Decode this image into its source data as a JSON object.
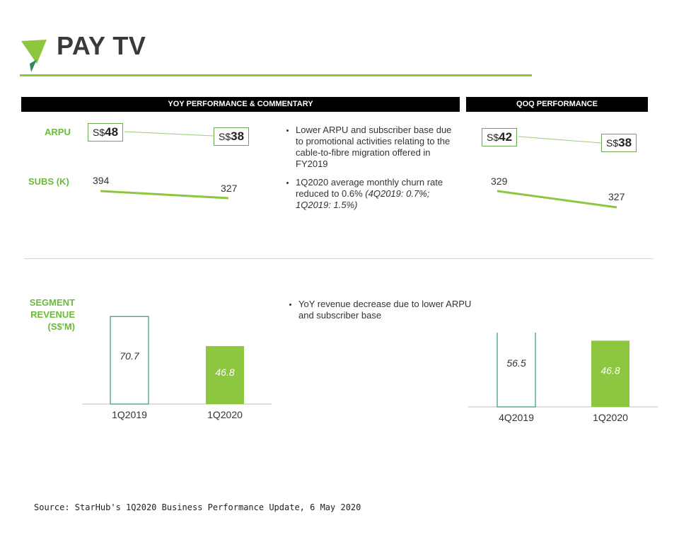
{
  "header": {
    "title": "PAY TV",
    "yoy_header": "YOY  PERFORMANCE & COMMENTARY",
    "qoq_header": "QOQ PERFORMANCE"
  },
  "labels": {
    "arpu": "ARPU",
    "subs": "SUBS (K)",
    "segment_revenue": [
      "SEGMENT",
      "REVENUE",
      "(S$'M)"
    ]
  },
  "yoy": {
    "arpu": {
      "from_prefix": "S$",
      "from_value": "48",
      "to_prefix": "S$",
      "to_value": "38"
    },
    "subs": {
      "from": "394",
      "to": "327"
    }
  },
  "qoq": {
    "arpu": {
      "from_prefix": "S$",
      "from_value": "42",
      "to_prefix": "S$",
      "to_value": "38"
    },
    "subs": {
      "from": "329",
      "to": "327"
    }
  },
  "commentary": {
    "bullet1": "Lower ARPU and subscriber base due to promotional activities relating to the cable-to-fibre migration offered in FY2019",
    "bullet2_main": "1Q2020 average monthly churn rate reduced to 0.6% ",
    "bullet2_note": "(4Q2019: 0.7%; 1Q2019: 1.5%)",
    "bullet3": "YoY revenue decrease due to lower ARPU and subscriber base"
  },
  "colors": {
    "accent_green": "#8dc63f",
    "outline_green": "#3a9a6a",
    "header_black": "#000000"
  },
  "chart_data": [
    {
      "type": "bar",
      "categories": [
        "1Q2019",
        "1Q2020"
      ],
      "values": [
        70.7,
        46.8
      ],
      "value_labels": [
        "70.7",
        "46.8"
      ],
      "styles": [
        "outline",
        "filled"
      ],
      "ylim": [
        0,
        80
      ]
    },
    {
      "type": "bar",
      "categories": [
        "4Q2019",
        "1Q2020"
      ],
      "values": [
        56.5,
        46.8
      ],
      "value_labels": [
        "56.5",
        "46.8"
      ],
      "styles": [
        "outline",
        "filled"
      ],
      "ylim": [
        0,
        65
      ]
    }
  ],
  "source": "Source: StarHub's 1Q2020 Business Performance Update, 6 May 2020"
}
